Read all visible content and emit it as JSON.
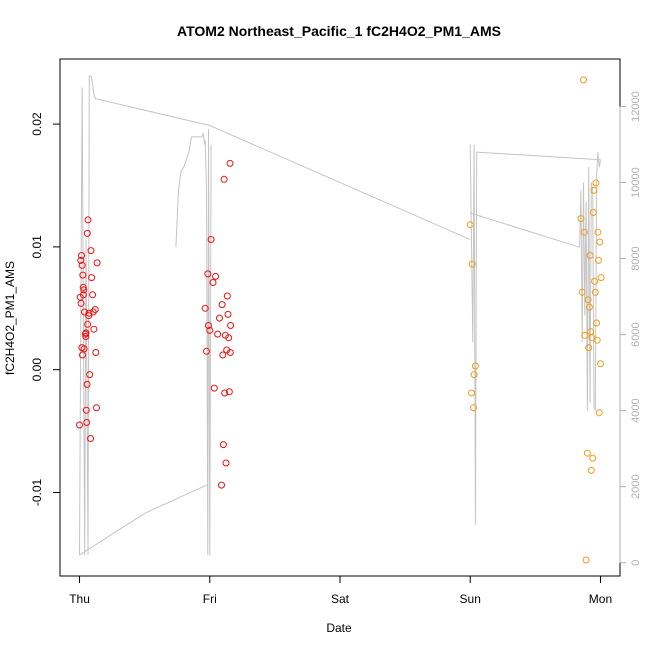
{
  "chart_data": {
    "type": "scatter",
    "title": "ATOM2 Northeast_Pacific_1 fC2H4O2_PM1_AMS",
    "xlabel": "Date",
    "ylabel": "fC2H4O2_PM1_AMS",
    "x_ticks": [
      "Thu",
      "Fri",
      "Sat",
      "Sun",
      "Mon"
    ],
    "x_tick_days": [
      0,
      1,
      2,
      3,
      4
    ],
    "xlim": [
      -0.15,
      4.15
    ],
    "ylim": [
      -0.0168,
      0.0253
    ],
    "y_ticks": [
      -0.01,
      0.0,
      0.01,
      0.02
    ],
    "y_tick_labels": [
      "-0.01",
      "0.00",
      "0.01",
      "0.02"
    ],
    "y2_ticks": [
      0,
      2000,
      4000,
      6000,
      8000,
      10000,
      12000
    ],
    "y2_tick_labels": [
      "0",
      "2000",
      "4000",
      "6000",
      "8000",
      "10000",
      "12000"
    ],
    "y2lim": [
      -350,
      13250
    ],
    "grid": false,
    "colors": {
      "series_early": "#ee1111",
      "series_late": "#f39c1a",
      "altitude_line": "#c4c4c4",
      "axis": "#000000",
      "right_axis": "#b0b0b0"
    },
    "series": [
      {
        "color": "#ee1111",
        "x": [
          0.0,
          0.005,
          0.01,
          0.012,
          0.015,
          0.018,
          0.02,
          0.023,
          0.025,
          0.028,
          0.03,
          0.033,
          0.035,
          0.038,
          0.045,
          0.048,
          0.05,
          0.052,
          0.055,
          0.058,
          0.06,
          0.062,
          0.065,
          0.07,
          0.073,
          0.078,
          0.085,
          0.088,
          0.093,
          0.1,
          0.105,
          0.11,
          0.12,
          0.125,
          0.13,
          0.135,
          0.965,
          0.975,
          0.985,
          0.99,
          1.0,
          1.01,
          1.025,
          1.035,
          1.045,
          1.06,
          1.075,
          1.09,
          1.095,
          1.1,
          1.105,
          1.11,
          1.115,
          1.12,
          1.125,
          1.13,
          1.135,
          1.14,
          1.145,
          1.15,
          1.155,
          1.158,
          1.16
        ],
        "y": [
          -0.0045,
          0.0059,
          0.0089,
          0.0054,
          0.0093,
          0.0018,
          0.0085,
          0.0012,
          0.0077,
          0.0067,
          0.0061,
          0.0065,
          0.0017,
          0.0047,
          0.0029,
          0.0027,
          0.003,
          -0.0033,
          -0.0043,
          -0.0012,
          0.0111,
          0.0037,
          0.0122,
          0.0044,
          0.0046,
          -0.0004,
          -0.0056,
          0.0097,
          0.0075,
          0.0061,
          0.0047,
          0.0033,
          0.0049,
          0.0014,
          -0.0031,
          0.0087,
          0.005,
          0.0015,
          0.0078,
          0.0036,
          0.0032,
          0.0106,
          0.0071,
          -0.0015,
          0.0076,
          0.0029,
          0.0042,
          -0.0094,
          0.0053,
          0.0012,
          -0.0061,
          0.0155,
          -0.0019,
          0.0028,
          -0.0076,
          0.0016,
          0.006,
          0.0045,
          0.0026,
          -0.0018,
          0.0168,
          0.0014,
          0.0036
        ]
      },
      {
        "color": "#f39c1a",
        "x": [
          3.0,
          3.01,
          3.015,
          3.025,
          3.03,
          3.04,
          3.85,
          3.86,
          3.87,
          3.875,
          3.88,
          3.89,
          3.9,
          3.905,
          3.91,
          3.915,
          3.92,
          3.925,
          3.93,
          3.935,
          3.94,
          3.945,
          3.95,
          3.955,
          3.96,
          3.965,
          3.97,
          3.975,
          3.98,
          3.985,
          3.99,
          3.995,
          4.0,
          4.005
        ],
        "y": [
          0.0118,
          -0.0019,
          0.0086,
          -0.0031,
          -0.0004,
          0.0003,
          0.0123,
          0.0063,
          0.0236,
          0.0112,
          0.0028,
          -0.0155,
          -0.0068,
          0.0057,
          0.0018,
          0.0051,
          0.0093,
          0.0031,
          -0.0082,
          0.0026,
          -0.0072,
          0.0128,
          0.0146,
          0.0072,
          0.0063,
          0.0152,
          0.0038,
          0.0024,
          0.0112,
          0.0089,
          -0.0035,
          0.0104,
          0.0005,
          0.0075
        ]
      }
    ],
    "secondary_line": {
      "axis": "right",
      "color": "#c4c4c4",
      "segments": [
        {
          "x": [
            0.0,
            0.02,
            0.04,
            0.05,
            0.065,
            0.075,
            0.09,
            0.1,
            0.11,
            0.125,
            0.13
          ],
          "y": [
            200,
            12500,
            200,
            8500,
            200,
            12800,
            12800,
            12600,
            12300,
            12200,
            12200
          ]
        },
        {
          "x": [
            0.13,
            1.0,
            3.0
          ],
          "y": [
            12200,
            11500,
            8500
          ]
        },
        {
          "x": [
            0.0,
            0.5,
            0.98
          ],
          "y": [
            200,
            1300,
            2050
          ]
        },
        {
          "x": [
            0.74,
            0.76,
            0.78,
            0.8,
            0.82,
            0.84,
            0.86,
            0.9,
            0.94,
            0.95,
            0.96,
            0.965,
            0.975,
            0.985,
            0.99,
            1.0,
            1.01
          ],
          "y": [
            8300,
            9800,
            10300,
            10400,
            10600,
            10800,
            11200,
            11200,
            11200,
            11300,
            11000,
            11100,
            9800,
            200,
            11400,
            200,
            11000
          ]
        },
        {
          "x": [
            3.0,
            3.02,
            3.03,
            3.04,
            3.05
          ],
          "y": [
            11000,
            5800,
            11000,
            1000,
            10800
          ]
        },
        {
          "x": [
            3.05,
            4.0
          ],
          "y": [
            10800,
            10600
          ]
        },
        {
          "x": [
            3.0,
            3.84
          ],
          "y": [
            9200,
            8300
          ]
        },
        {
          "x": [
            3.84,
            3.85,
            3.86,
            3.87,
            3.88,
            3.89,
            3.9,
            3.91,
            3.92,
            3.93,
            3.94,
            3.95,
            3.96,
            3.97,
            3.98,
            3.99,
            4.0
          ],
          "y": [
            8300,
            9800,
            5800,
            10000,
            6500,
            9500,
            4000,
            10400,
            4200,
            10000,
            9800,
            4100,
            4000,
            10200,
            10800,
            10400,
            10600
          ]
        }
      ]
    }
  }
}
